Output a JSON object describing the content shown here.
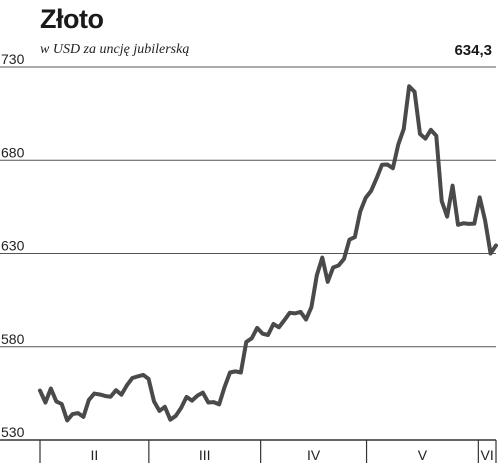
{
  "header": {
    "title": "Złoto",
    "subtitle": "w USD za uncję jubilerską",
    "last_value": "634,3"
  },
  "colors": {
    "line": "#4a4a4a",
    "grid": "#555555",
    "axis": "#333333"
  },
  "chart_data": {
    "type": "line",
    "title": "Złoto",
    "subtitle": "w USD za uncję jubilerską",
    "ylim": [
      530,
      730
    ],
    "yticks": [
      530,
      580,
      630,
      680,
      730
    ],
    "grid": true,
    "x_period_labels": [
      "II",
      "III",
      "IV",
      "V",
      "VI"
    ],
    "x_period_boundaries": [
      0,
      37,
      75,
      111,
      149,
      155
    ],
    "x_last": 155,
    "values": [
      556.5,
      550.1,
      557.6,
      550.7,
      549.3,
      540.5,
      543.9,
      544.4,
      542.4,
      551.5,
      554.9,
      554.4,
      553.6,
      553.2,
      556.7,
      554.3,
      559.3,
      563.2,
      564.1,
      564.9,
      562.8,
      550.7,
      545.6,
      547.8,
      540.9,
      542.9,
      547.2,
      553.1,
      551.1,
      553.8,
      555.4,
      550.1,
      550.3,
      549.1,
      558.4,
      566.2,
      566.8,
      566.2,
      582.6,
      584.5,
      590.1,
      587.0,
      586.3,
      592.2,
      590.4,
      594.2,
      598.2,
      597.9,
      598.7,
      594.6,
      601.3,
      618.4,
      627.8,
      614.8,
      622.5,
      623.6,
      627.1,
      637.4,
      638.8,
      652.6,
      659.9,
      663.6,
      670.3,
      677.6,
      677.7,
      675.7,
      688.5,
      696.7,
      719.7,
      716.7,
      694.1,
      691.6,
      696.3,
      693.1,
      658.1,
      649.8,
      666.4,
      645.4,
      646.2,
      645.9,
      646.0,
      660.1,
      647.6,
      630.0,
      634.3
    ]
  }
}
